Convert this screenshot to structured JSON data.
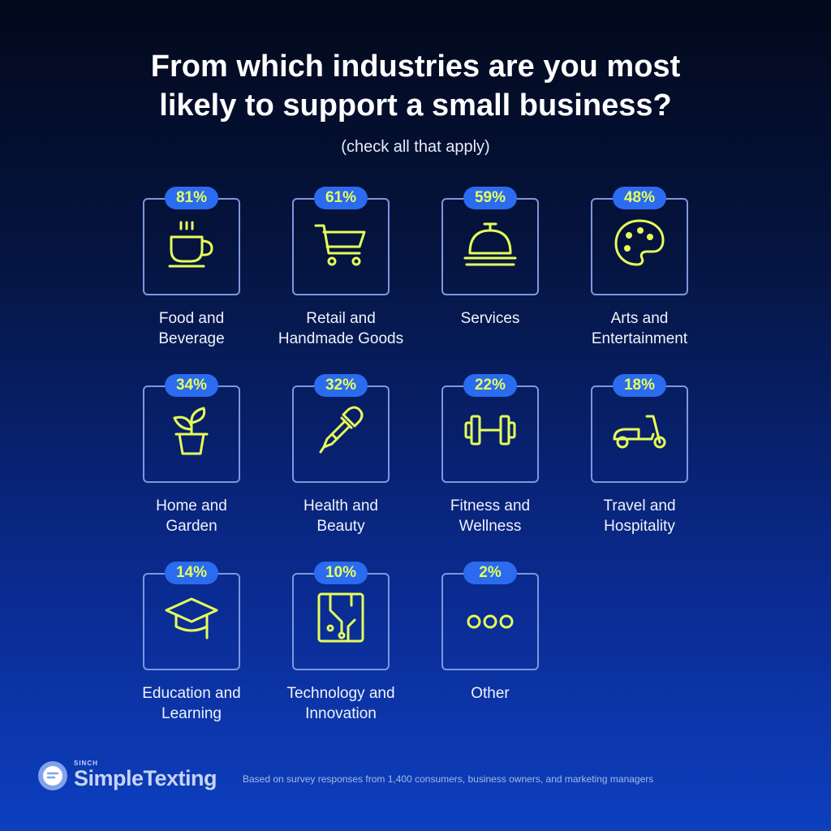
{
  "title_line1": "From which industries are you most",
  "title_line2": "likely to support a small business?",
  "subtitle": "(check all that apply)",
  "colors": {
    "accent": "#e6ff5a",
    "badge": "#2a6bf0",
    "box_border": "#7d97e0"
  },
  "items": [
    {
      "percent": "81%",
      "label1": "Food and",
      "label2": "Beverage",
      "icon": "coffee-cup-icon"
    },
    {
      "percent": "61%",
      "label1": "Retail and",
      "label2": "Handmade Goods",
      "icon": "shopping-cart-icon"
    },
    {
      "percent": "59%",
      "label1": "Services",
      "label2": "",
      "icon": "service-bell-icon"
    },
    {
      "percent": "48%",
      "label1": "Arts and",
      "label2": "Entertainment",
      "icon": "paint-palette-icon"
    },
    {
      "percent": "34%",
      "label1": "Home and",
      "label2": "Garden",
      "icon": "potted-plant-icon"
    },
    {
      "percent": "32%",
      "label1": "Health and",
      "label2": "Beauty",
      "icon": "dropper-icon"
    },
    {
      "percent": "22%",
      "label1": "Fitness and",
      "label2": "Wellness",
      "icon": "dumbbell-icon"
    },
    {
      "percent": "18%",
      "label1": "Travel and",
      "label2": "Hospitality",
      "icon": "scooter-icon"
    },
    {
      "percent": "14%",
      "label1": "Education and",
      "label2": "Learning",
      "icon": "graduation-cap-icon"
    },
    {
      "percent": "10%",
      "label1": "Technology and",
      "label2": "Innovation",
      "icon": "circuit-board-icon"
    },
    {
      "percent": "2%",
      "label1": "Other",
      "label2": "",
      "icon": "more-dots-icon"
    }
  ],
  "footer": {
    "brand_small": "SINCH",
    "brand": "SimpleTexting",
    "note": "Based on survey responses from 1,400 consumers, business owners, and marketing managers"
  }
}
